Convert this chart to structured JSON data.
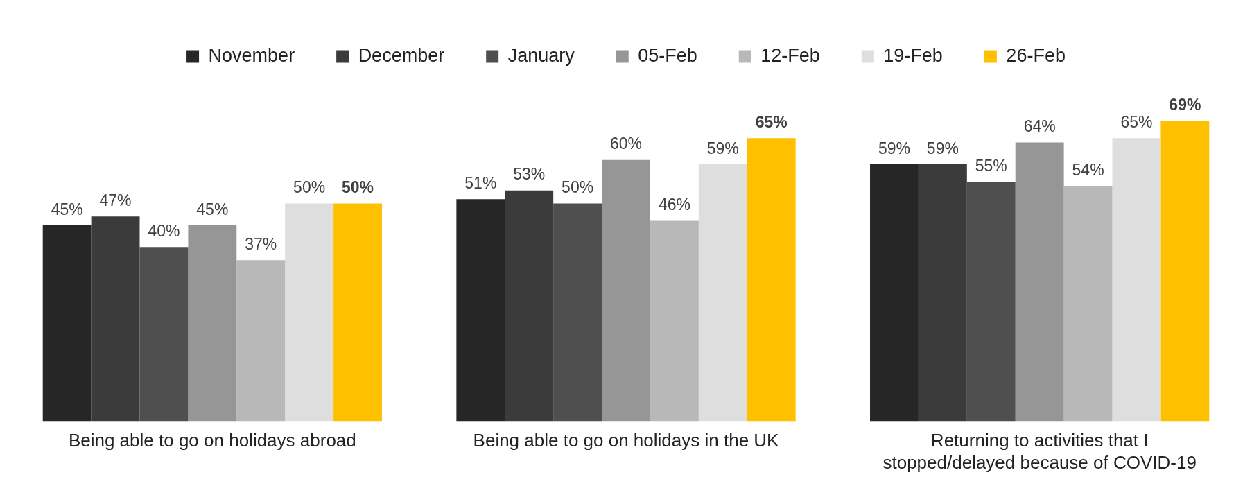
{
  "chart_data": {
    "type": "bar",
    "categories": [
      "Being able to go on holidays abroad",
      "Being able to go on holidays in the UK",
      "Returning to activities that I stopped/delayed because of COVID-19"
    ],
    "series": [
      {
        "name": "November",
        "color": "#262626",
        "values": [
          45,
          51,
          59
        ],
        "value_labels": [
          "45%",
          "51%",
          "59%"
        ]
      },
      {
        "name": "December",
        "color": "#3b3b3b",
        "values": [
          47,
          53,
          59
        ],
        "value_labels": [
          "47%",
          "53%",
          "59%"
        ]
      },
      {
        "name": "January",
        "color": "#4f4f4f",
        "values": [
          40,
          50,
          55
        ],
        "value_labels": [
          "40%",
          "50%",
          "55%"
        ]
      },
      {
        "name": "05-Feb",
        "color": "#969696",
        "values": [
          45,
          60,
          64
        ],
        "value_labels": [
          "45%",
          "60%",
          "64%"
        ]
      },
      {
        "name": "12-Feb",
        "color": "#b8b8b8",
        "values": [
          37,
          46,
          54
        ],
        "value_labels": [
          "37%",
          "46%",
          "54%"
        ]
      },
      {
        "name": "19-Feb",
        "color": "#dedede",
        "values": [
          50,
          59,
          65
        ],
        "value_labels": [
          "50%",
          "59%",
          "65%"
        ]
      },
      {
        "name": "26-Feb",
        "color": "#ffc000",
        "values": [
          50,
          65,
          69
        ],
        "value_labels": [
          "50%",
          "65%",
          "69%"
        ]
      }
    ],
    "legend": "top",
    "grid": false
  }
}
